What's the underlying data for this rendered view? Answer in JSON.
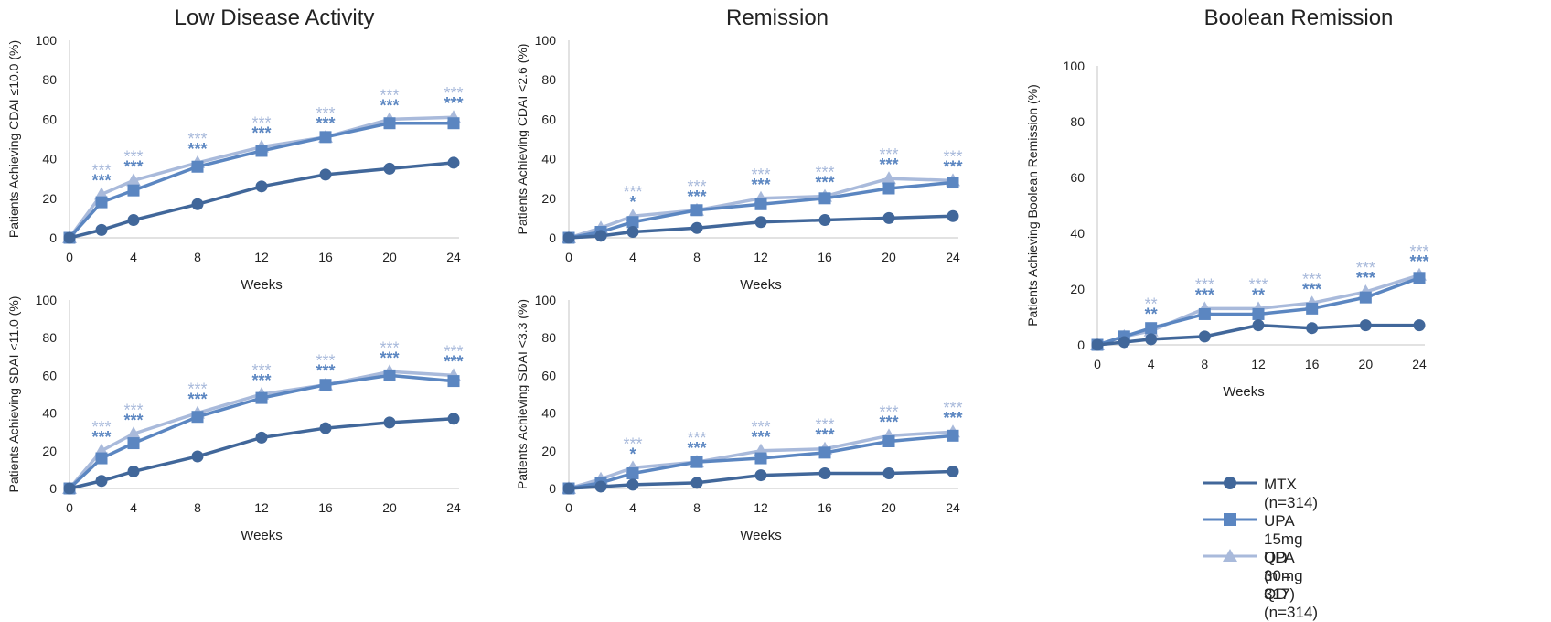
{
  "titles": {
    "low_disease_activity": "Low Disease Activity",
    "remission": "Remission",
    "boolean_remission": "Boolean Remission"
  },
  "colors": {
    "mtx": "#41679a",
    "upa15": "#5b86c1",
    "upa30": "#a9badb"
  },
  "legend": {
    "items": [
      {
        "label": "MTX (n=314)",
        "marker": "circle"
      },
      {
        "label": "UPA 15mg QD (n = 317)",
        "marker": "square"
      },
      {
        "label": "UPA 30mg QD (n=314)",
        "marker": "triangle"
      }
    ]
  },
  "chart_data": [
    {
      "type": "line",
      "title": "",
      "ylabel": "Patients Achieving CDAI ≤10.0 (%)",
      "xlabel": "Weeks",
      "x": [
        0,
        2,
        4,
        8,
        12,
        16,
        20,
        24
      ],
      "x_tick_labels": [
        "0",
        "4",
        "8",
        "12",
        "16",
        "20",
        "24"
      ],
      "ylim": [
        0,
        100
      ],
      "y_ticks": [
        0,
        20,
        40,
        60,
        80,
        100
      ],
      "series": [
        {
          "name": "MTX (n=314)",
          "values": [
            0,
            4,
            9,
            17,
            26,
            32,
            35,
            38
          ]
        },
        {
          "name": "UPA 15mg QD (n = 317)",
          "values": [
            0,
            18,
            24,
            36,
            44,
            51,
            58,
            58
          ]
        },
        {
          "name": "UPA 30mg QD (n=314)",
          "values": [
            0,
            22,
            29,
            38,
            46,
            51,
            60,
            61
          ]
        }
      ],
      "significance": {
        "x": [
          2,
          4,
          8,
          12,
          16,
          20,
          24
        ],
        "upa15": [
          "***",
          "***",
          "***",
          "***",
          "***",
          "***",
          "***"
        ],
        "upa30": [
          "***",
          "***",
          "***",
          "***",
          "***",
          "***",
          "***"
        ]
      }
    },
    {
      "type": "line",
      "title": "",
      "ylabel": "Patients Achieving CDAI <2.6 (%)",
      "xlabel": "Weeks",
      "x": [
        0,
        2,
        4,
        8,
        12,
        16,
        20,
        24
      ],
      "x_tick_labels": [
        "0",
        "4",
        "8",
        "12",
        "16",
        "20",
        "24"
      ],
      "ylim": [
        0,
        100
      ],
      "y_ticks": [
        0,
        20,
        40,
        60,
        80,
        100
      ],
      "series": [
        {
          "name": "MTX (n=314)",
          "values": [
            0,
            1,
            3,
            5,
            8,
            9,
            10,
            11
          ]
        },
        {
          "name": "UPA 15mg QD (n = 317)",
          "values": [
            0,
            3,
            8,
            14,
            17,
            20,
            25,
            28
          ]
        },
        {
          "name": "UPA 30mg QD (n=314)",
          "values": [
            0,
            5,
            11,
            14,
            20,
            21,
            30,
            29
          ]
        }
      ],
      "significance": {
        "x": [
          4,
          8,
          12,
          16,
          20,
          24
        ],
        "upa15": [
          "*",
          "***",
          "***",
          "***",
          "***",
          "***"
        ],
        "upa30": [
          "***",
          "***",
          "***",
          "***",
          "***",
          "***"
        ]
      }
    },
    {
      "type": "line",
      "title": "",
      "ylabel": "Patients Achieving SDAI <11.0 (%)",
      "xlabel": "Weeks",
      "x": [
        0,
        2,
        4,
        8,
        12,
        16,
        20,
        24
      ],
      "x_tick_labels": [
        "0",
        "4",
        "8",
        "12",
        "16",
        "20",
        "24"
      ],
      "ylim": [
        0,
        100
      ],
      "y_ticks": [
        0,
        20,
        40,
        60,
        80,
        100
      ],
      "series": [
        {
          "name": "MTX (n=314)",
          "values": [
            0,
            4,
            9,
            17,
            27,
            32,
            35,
            37
          ]
        },
        {
          "name": "UPA 15mg QD (n = 317)",
          "values": [
            0,
            16,
            24,
            38,
            48,
            55,
            60,
            57
          ]
        },
        {
          "name": "UPA 30mg QD (n=314)",
          "values": [
            0,
            20,
            29,
            40,
            50,
            55,
            62,
            60
          ]
        }
      ],
      "significance": {
        "x": [
          2,
          4,
          8,
          12,
          16,
          20,
          24
        ],
        "upa15": [
          "***",
          "***",
          "***",
          "***",
          "***",
          "***",
          "***"
        ],
        "upa30": [
          "***",
          "***",
          "***",
          "***",
          "***",
          "***",
          "***"
        ]
      }
    },
    {
      "type": "line",
      "title": "",
      "ylabel": "Patients Achieving SDAI <3.3 (%)",
      "xlabel": "Weeks",
      "x": [
        0,
        2,
        4,
        8,
        12,
        16,
        20,
        24
      ],
      "x_tick_labels": [
        "0",
        "4",
        "8",
        "12",
        "16",
        "20",
        "24"
      ],
      "ylim": [
        0,
        100
      ],
      "y_ticks": [
        0,
        20,
        40,
        60,
        80,
        100
      ],
      "series": [
        {
          "name": "MTX (n=314)",
          "values": [
            0,
            1,
            2,
            3,
            7,
            8,
            8,
            9
          ]
        },
        {
          "name": "UPA 15mg QD (n = 317)",
          "values": [
            0,
            3,
            8,
            14,
            16,
            19,
            25,
            28
          ]
        },
        {
          "name": "UPA 30mg QD (n=314)",
          "values": [
            0,
            5,
            11,
            14,
            20,
            21,
            28,
            30
          ]
        }
      ],
      "significance": {
        "x": [
          4,
          8,
          12,
          16,
          20,
          24
        ],
        "upa15": [
          "*",
          "***",
          "***",
          "***",
          "***",
          "***"
        ],
        "upa30": [
          "***",
          "***",
          "***",
          "***",
          "***",
          "***"
        ]
      }
    },
    {
      "type": "line",
      "title": "",
      "ylabel": "Patients Achieving Boolean Remission (%)",
      "xlabel": "Weeks",
      "x": [
        0,
        2,
        4,
        8,
        12,
        16,
        20,
        24
      ],
      "x_tick_labels": [
        "0",
        "4",
        "8",
        "12",
        "16",
        "20",
        "24"
      ],
      "ylim": [
        0,
        100
      ],
      "y_ticks": [
        0,
        20,
        40,
        60,
        80,
        100
      ],
      "series": [
        {
          "name": "MTX (n=314)",
          "values": [
            0,
            1,
            2,
            3,
            7,
            6,
            7,
            7
          ]
        },
        {
          "name": "UPA 15mg QD (n = 317)",
          "values": [
            0,
            3,
            6,
            11,
            11,
            13,
            17,
            24
          ]
        },
        {
          "name": "UPA 30mg QD (n=314)",
          "values": [
            0,
            3,
            5,
            13,
            13,
            15,
            19,
            25
          ]
        }
      ],
      "significance": {
        "x": [
          4,
          8,
          12,
          16,
          20,
          24
        ],
        "upa15": [
          "**",
          "***",
          "**",
          "***",
          "***",
          "***"
        ],
        "upa30": [
          "**",
          "***",
          "***",
          "***",
          "***",
          "***"
        ]
      }
    }
  ]
}
